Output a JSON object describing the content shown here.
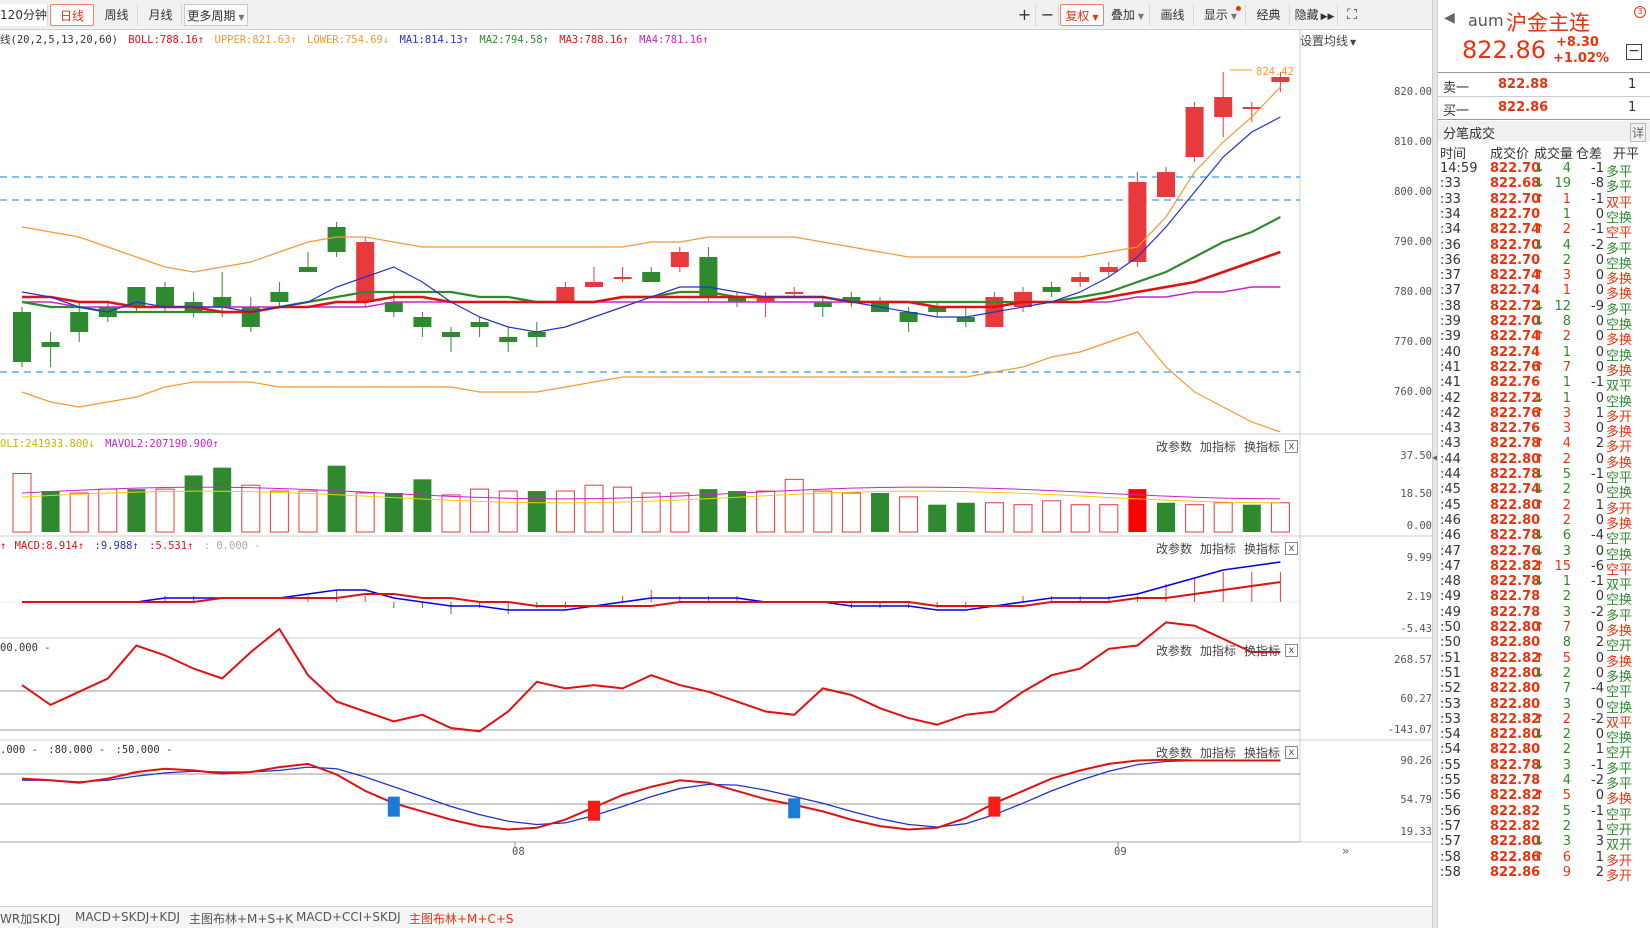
{
  "toolbar": {
    "period_select": "120分钟",
    "tab_daily": "日线",
    "tab_weekly": "周线",
    "tab_monthly": "月线",
    "more_periods": "更多周期",
    "adjust": "复权",
    "overlay": "叠加",
    "draw": "画线",
    "display": "显示",
    "classic": "经典",
    "hide": "隐藏"
  },
  "main_panel": {
    "indicator_prefix": "线(20,2,5,13,20,60)",
    "boll": "BOLL:788.16",
    "upper": "UPPER:821.63",
    "lower": "LOWER:754.69",
    "ma1": "MA1:814.13",
    "ma2": "MA2:794.58",
    "ma3": "MA3:788.16",
    "ma4": "MA4:781.16",
    "set_ma": "设置均线",
    "max_label": "824.42",
    "axis": [
      "820.00",
      "810.00",
      "800.00",
      "790.00",
      "780.00",
      "770.00",
      "760.00"
    ]
  },
  "vol_panel": {
    "vol": "OLI:241933.800",
    "mavol2": "MAVOL2:207190.900",
    "axis": [
      "37.50",
      "18.50",
      "0.00"
    ]
  },
  "macd_panel": {
    "macd": "MACD:8.914",
    "dif": ":9.988",
    "dea": ":5.531",
    "zero": ": 0.000 -",
    "axis": [
      "9.99",
      "2.19",
      "-5.43"
    ]
  },
  "cci_panel": {
    "label": "00.000 -",
    "axis": [
      "268.57",
      "60.27",
      "-143.07"
    ]
  },
  "kdj_panel": {
    "labels": [
      ".000 -",
      ":80.000 -",
      ":50.000 -"
    ],
    "axis": [
      "90.26",
      "54.79",
      "19.33"
    ]
  },
  "panel_tools": {
    "modify": "改参数",
    "add": "加指标",
    "swap": "换指标",
    "close": "x"
  },
  "x_axis": [
    "08",
    "09"
  ],
  "bottom_tabs": [
    "WR加SKDJ",
    "MACD+SKDJ+KDJ",
    "主图布林+M+S+K",
    "MACD+CCI+SKDJ",
    "主图布林+M+C+S"
  ],
  "colors": {
    "up": "#e8393c",
    "down": "#2f8a2f",
    "boll": "#f39a34",
    "ma1": "#2233cc",
    "ma2": "#2f8a2f",
    "ma3": "#e01111",
    "ma4": "#cc22cc",
    "accent": "#e8330d"
  },
  "quote": {
    "code": "aum",
    "name": "沪金主连",
    "price": "822.86",
    "change": "+8.30",
    "change_pct": "+1.02%",
    "sell_label": "卖一",
    "sell_price": "822.88",
    "sell_qty": "1",
    "buy_label": "买一",
    "buy_price": "822.86",
    "buy_qty": "1"
  },
  "ticks": {
    "title": "分笔成交",
    "detail": "详",
    "headers": [
      "时间",
      "成交价",
      "成交量",
      "仓差",
      "开平"
    ],
    "rows": [
      [
        "14:59",
        "822.70",
        "d",
        "4",
        "-1",
        "多平"
      ],
      [
        ":33",
        "822.68",
        "d",
        "19",
        "-8",
        "多平"
      ],
      [
        ":33",
        "822.70",
        "u",
        "1",
        "-1",
        "双平"
      ],
      [
        ":34",
        "822.70",
        "",
        "1",
        "0",
        "空换"
      ],
      [
        ":34",
        "822.74",
        "u",
        "2",
        "-1",
        "空平"
      ],
      [
        ":36",
        "822.70",
        "d",
        "4",
        "-2",
        "多平"
      ],
      [
        ":36",
        "822.70",
        "",
        "2",
        "0",
        "空换"
      ],
      [
        ":37",
        "822.74",
        "u",
        "3",
        "0",
        "多换"
      ],
      [
        ":37",
        "822.74",
        "",
        "1",
        "0",
        "多换"
      ],
      [
        ":38",
        "822.72",
        "d",
        "12",
        "-9",
        "多平"
      ],
      [
        ":39",
        "822.70",
        "d",
        "8",
        "0",
        "空换"
      ],
      [
        ":39",
        "822.74",
        "u",
        "2",
        "0",
        "多换"
      ],
      [
        ":40",
        "822.74",
        "",
        "1",
        "0",
        "空换"
      ],
      [
        ":41",
        "822.76",
        "u",
        "7",
        "0",
        "多换"
      ],
      [
        ":41",
        "822.76",
        "",
        "1",
        "-1",
        "双平"
      ],
      [
        ":42",
        "822.72",
        "d",
        "1",
        "0",
        "空换"
      ],
      [
        ":42",
        "822.76",
        "u",
        "3",
        "1",
        "多开"
      ],
      [
        ":43",
        "822.76",
        "",
        "3",
        "0",
        "多换"
      ],
      [
        ":43",
        "822.78",
        "u",
        "4",
        "2",
        "多开"
      ],
      [
        ":44",
        "822.80",
        "u",
        "2",
        "0",
        "多换"
      ],
      [
        ":44",
        "822.78",
        "d",
        "5",
        "-1",
        "空平"
      ],
      [
        ":45",
        "822.74",
        "d",
        "2",
        "0",
        "空换"
      ],
      [
        ":45",
        "822.80",
        "u",
        "2",
        "1",
        "多开"
      ],
      [
        ":46",
        "822.80",
        "",
        "2",
        "0",
        "多换"
      ],
      [
        ":46",
        "822.78",
        "d",
        "6",
        "-4",
        "空平"
      ],
      [
        ":47",
        "822.76",
        "d",
        "3",
        "0",
        "空换"
      ],
      [
        ":47",
        "822.82",
        "u",
        "15",
        "-6",
        "空平"
      ],
      [
        ":48",
        "822.78",
        "d",
        "1",
        "-1",
        "双平"
      ],
      [
        ":49",
        "822.78",
        "",
        "2",
        "0",
        "空换"
      ],
      [
        ":49",
        "822.78",
        "",
        "3",
        "-2",
        "多平"
      ],
      [
        ":50",
        "822.80",
        "u",
        "7",
        "0",
        "多换"
      ],
      [
        ":50",
        "822.80",
        "",
        "8",
        "2",
        "空开"
      ],
      [
        ":51",
        "822.82",
        "u",
        "5",
        "0",
        "多换"
      ],
      [
        ":51",
        "822.80",
        "d",
        "2",
        "0",
        "多换"
      ],
      [
        ":52",
        "822.80",
        "",
        "7",
        "-4",
        "空平"
      ],
      [
        ":53",
        "822.80",
        "",
        "3",
        "0",
        "空换"
      ],
      [
        ":53",
        "822.82",
        "u",
        "2",
        "-2",
        "双平"
      ],
      [
        ":54",
        "822.80",
        "d",
        "2",
        "0",
        "空换"
      ],
      [
        ":54",
        "822.80",
        "",
        "2",
        "1",
        "空开"
      ],
      [
        ":55",
        "822.78",
        "d",
        "3",
        "-1",
        "多平"
      ],
      [
        ":55",
        "822.78",
        "",
        "4",
        "-2",
        "多平"
      ],
      [
        ":56",
        "822.82",
        "u",
        "5",
        "0",
        "多换"
      ],
      [
        ":56",
        "822.82",
        "",
        "5",
        "-1",
        "空平"
      ],
      [
        ":57",
        "822.82",
        "",
        "2",
        "1",
        "空开"
      ],
      [
        ":57",
        "822.80",
        "d",
        "3",
        "3",
        "双开"
      ],
      [
        ":58",
        "822.86",
        "u",
        "6",
        "1",
        "多开"
      ],
      [
        ":58",
        "822.86",
        "",
        "9",
        "2",
        "多开"
      ]
    ]
  }
}
